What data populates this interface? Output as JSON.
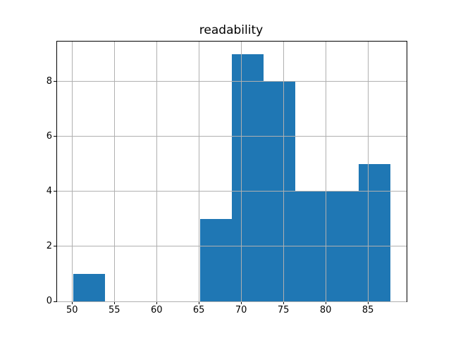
{
  "figure": {
    "background": "#ffffff"
  },
  "chart_data": {
    "type": "bar",
    "subtype": "histogram",
    "title": "readability",
    "xlabel": "",
    "ylabel": "",
    "bar_color": "#1f77b4",
    "grid": true,
    "grid_color": "#b0b0b0",
    "spine_color": "#000000",
    "legend": null,
    "xlim": [
      48.22,
      89.58
    ],
    "ylim": [
      0,
      9.45
    ],
    "xticks": [
      50,
      55,
      60,
      65,
      70,
      75,
      80,
      85
    ],
    "yticks": [
      0,
      2,
      4,
      6,
      8
    ],
    "bin_edges": [
      50.1,
      53.86,
      57.62,
      61.38,
      65.14,
      68.9,
      72.66,
      76.42,
      80.18,
      83.94,
      87.7
    ],
    "counts": [
      1,
      0,
      0,
      0,
      3,
      9,
      8,
      4,
      4,
      5
    ]
  }
}
